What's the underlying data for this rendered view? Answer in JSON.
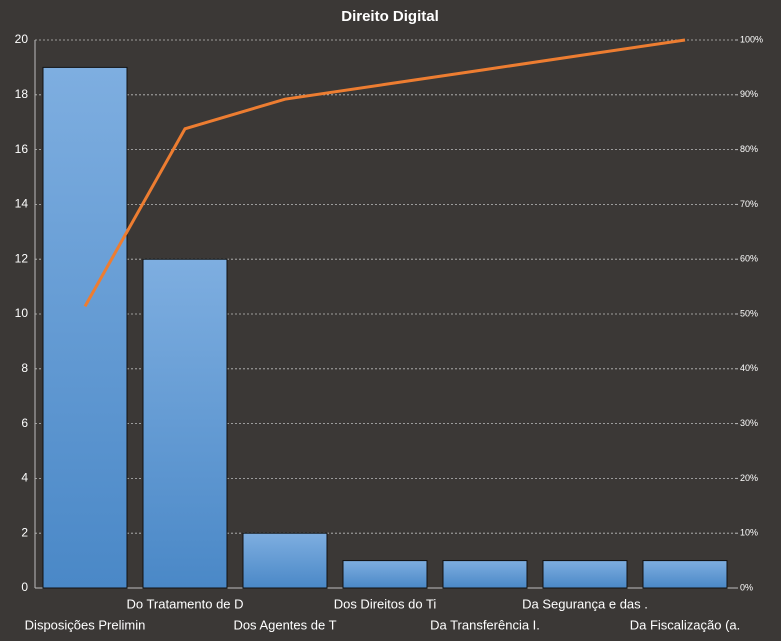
{
  "chart_data": {
    "type": "bar",
    "title": "Direito  Digital",
    "categories": [
      "Disposições Prelimin",
      "Do Tratamento de D",
      "Dos Agentes de T",
      "Dos Direitos do Ti",
      "Da Transferência I.",
      "Da Segurança e das .",
      "Da Fiscalização (a."
    ],
    "series": [
      {
        "type": "bar",
        "color": "#5b9bd5",
        "values": [
          19,
          12,
          2,
          1,
          1,
          1,
          1
        ]
      },
      {
        "type": "line",
        "axis": "y2",
        "color": "#ed7d31",
        "values": [
          51.4,
          83.8,
          89.2,
          91.9,
          94.6,
          97.3,
          100
        ]
      }
    ],
    "ylim": [
      0,
      20
    ],
    "yticks": [
      0,
      2,
      4,
      6,
      8,
      10,
      12,
      14,
      16,
      18,
      20
    ],
    "y2lim": [
      0,
      100
    ],
    "y2ticks": [
      {
        "value": 0,
        "label": "0%"
      },
      {
        "value": 10,
        "label": "10%"
      },
      {
        "value": 20,
        "label": "20%"
      },
      {
        "value": 30,
        "label": "30%"
      },
      {
        "value": 40,
        "label": "40%"
      },
      {
        "value": 50,
        "label": "50%"
      },
      {
        "value": 60,
        "label": "60%"
      },
      {
        "value": 70,
        "label": "70%"
      },
      {
        "value": 80,
        "label": "80%"
      },
      {
        "value": 90,
        "label": "90%"
      },
      {
        "value": 100,
        "label": "100%"
      }
    ],
    "grid": true
  }
}
